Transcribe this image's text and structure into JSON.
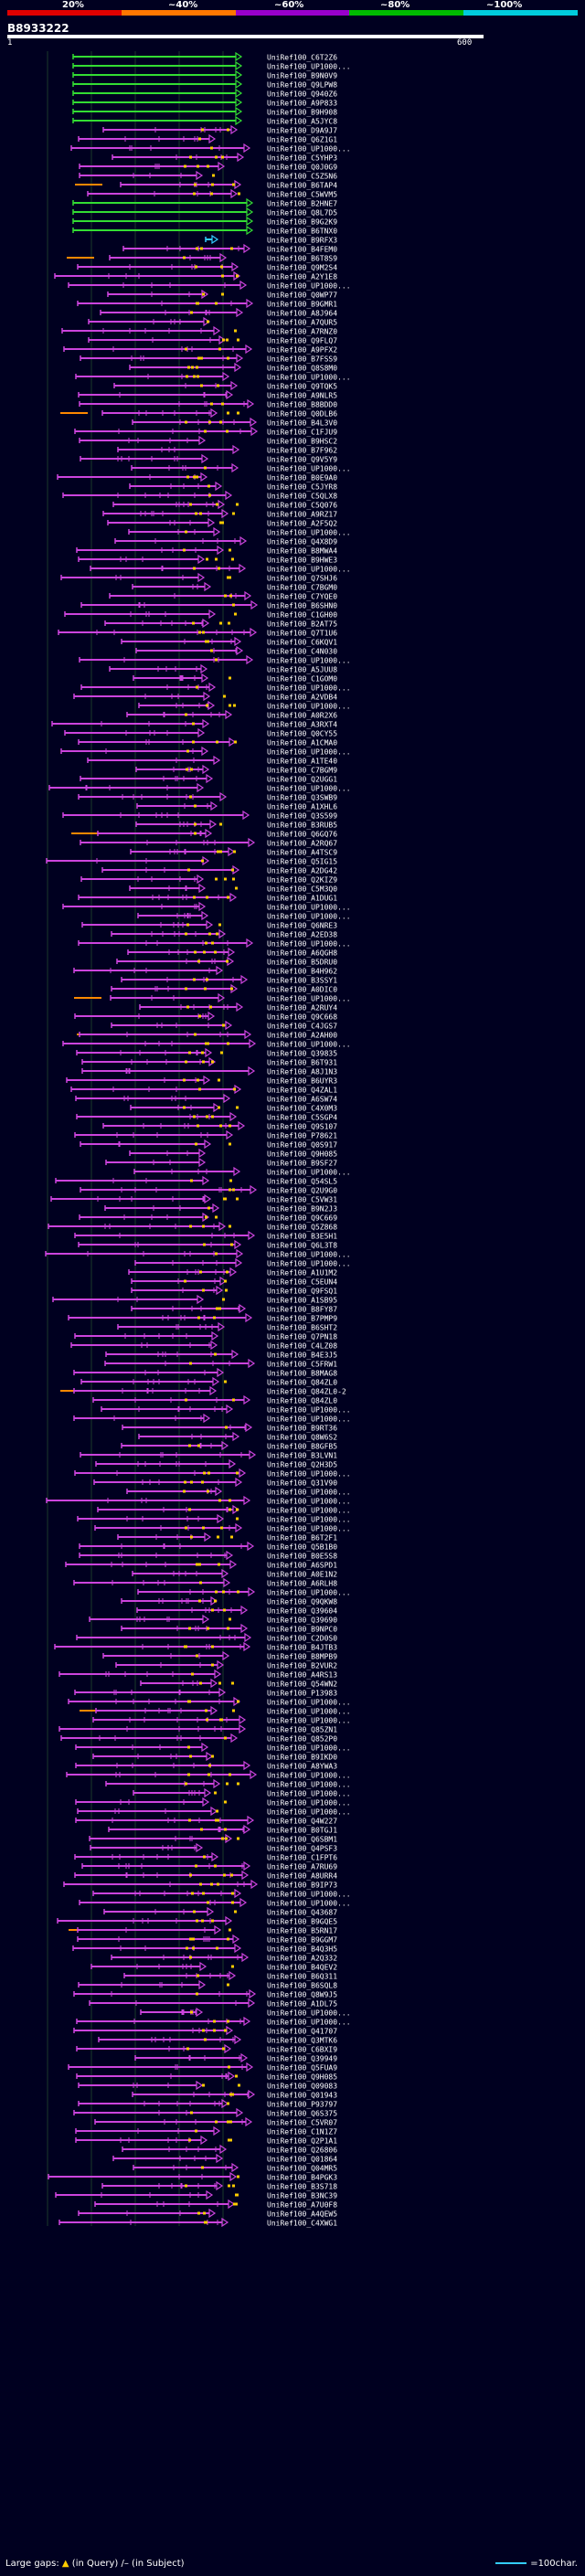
{
  "scale": {
    "labels": [
      "20%",
      "~40%",
      "~60%",
      "~80%",
      "~100%"
    ],
    "colors": [
      "#e00000",
      "#ff7700",
      "#9900cc",
      "#00bb00",
      "#00ccdd"
    ]
  },
  "query": {
    "id": "B8933222",
    "start": "1",
    "end": "600"
  },
  "colors": {
    "green": "#33dd33",
    "magenta": "#cc44dd",
    "orange": "#ff8800",
    "cyan": "#33ccff",
    "gap": "#ffcc00",
    "background": "#000020",
    "gridline": "#1a3a2a"
  },
  "hits": [
    "UniRef100_C6T2Z6",
    "UniRef100_UP1000...",
    "UniRef100_B9N0V9",
    "UniRef100_Q9LPW8",
    "UniRef100_Q940Z6",
    "UniRef100_A9P833",
    "UniRef100_B9H908",
    "UniRef100_A5JYC8",
    "UniRef100_D9A9J7",
    "UniRef100_Q6Z1G1",
    "UniRef100_UP1000...",
    "UniRef100_C5YHP3",
    "UniRef100_Q0J0G9",
    "UniRef100_C5Z5N6",
    "UniRef100_B6TAP4",
    "UniRef100_C5WVM5",
    "UniRef100_B2HNE7",
    "UniRef100_Q8L7D5",
    "UniRef100_B9G2K9",
    "UniRef100_B6TNX0",
    "UniRef100_B9RFX3",
    "UniRef100_B4FEM0",
    "UniRef100_B6T8S9",
    "UniRef100_Q9M2S4",
    "UniRef100_A2Y1E8",
    "UniRef100_UP1000...",
    "UniRef100_Q0WP77",
    "UniRef100_B9GMR1",
    "UniRef100_A8J964",
    "UniRef100_A7QUR5",
    "UniRef100_A7RNZ0",
    "UniRef100_Q9FLQ7",
    "UniRef100_A9PFX2",
    "UniRef100_B7FSS9",
    "UniRef100_Q8S8M0",
    "UniRef100_UP1000...",
    "UniRef100_Q9TQK5",
    "UniRef100_A9NLR5",
    "UniRef100_B8BDD0",
    "UniRef100_Q0DLB6",
    "UniRef100_B4L3V0",
    "UniRef100_C1FJU9",
    "UniRef100_B9HSC2",
    "UniRef100_B7F962",
    "UniRef100_Q9V5Y9",
    "UniRef100_UP1000...",
    "UniRef100_B0E9A0",
    "UniRef100_C5JYR8",
    "UniRef100_C5QLX8",
    "UniRef100_C5Q076",
    "UniRef100_A9RZ17",
    "UniRef100_A2F5Q2",
    "UniRef100_UP1000...",
    "UniRef100_Q4X8D9",
    "UniRef100_B8MWA4",
    "UniRef100_B9HWE3",
    "UniRef100_UP1000...",
    "UniRef100_Q7SHJ6",
    "UniRef100_C7BGM0",
    "UniRef100_C7YQE0",
    "UniRef100_B6SHN0",
    "UniRef100_C1GH00",
    "UniRef100_B2AT75",
    "UniRef100_Q7T1U6",
    "UniRef100_C6KQV1",
    "UniRef100_C4N030",
    "UniRef100_UP1000...",
    "UniRef100_A5JUU8",
    "UniRef100_C1GOM0",
    "UniRef100_UP1000...",
    "UniRef100_A2VDB4",
    "UniRef100_UP1000...",
    "UniRef100_A0R2X6",
    "UniRef100_A3RXT4",
    "UniRef100_Q0CY55",
    "UniRef100_A1CMA0",
    "UniRef100_UP1000...",
    "UniRef100_A1TE40",
    "UniRef100_C7BGM9",
    "UniRef100_Q2UGG1",
    "UniRef100_UP1000...",
    "UniRef100_Q3SWB9",
    "UniRef100_A1XHL6",
    "UniRef100_Q3S599",
    "UniRef100_B3RUB5",
    "UniRef100_Q6GQ76",
    "UniRef100_A2RQ67",
    "UniRef100_A4TSC9",
    "UniRef100_Q5IG15",
    "UniRef100_A2DG42",
    "UniRef100_Q2KIZ9",
    "UniRef100_C5M3Q0",
    "UniRef100_A1DUG1",
    "UniRef100_UP1000...",
    "UniRef100_UP1000...",
    "UniRef100_Q6NRE3",
    "UniRef100_A2ED38",
    "UniRef100_UP1000...",
    "UniRef100_A6QGH8",
    "UniRef100_B5DRU0",
    "UniRef100_B4H962",
    "UniRef100_B3SSY1",
    "UniRef100_A0DIC0",
    "UniRef100_UP1000...",
    "UniRef100_A2RUY4",
    "UniRef100_Q9C668",
    "UniRef100_C4JGS7",
    "UniRef100_A2AH00",
    "UniRef100_UP1000...",
    "UniRef100_Q39835",
    "UniRef100_B6T931",
    "UniRef100_A8J1N3",
    "UniRef100_B6UYR3",
    "UniRef100_Q4ZAL1",
    "UniRef100_A6SW74",
    "UniRef100_C4X0M3",
    "UniRef100_C5SGP4",
    "UniRef100_Q9S107",
    "UniRef100_P78621",
    "UniRef100_Q0S917",
    "UniRef100_Q9H085",
    "UniRef100_B9SF27",
    "UniRef100_UP1000...",
    "UniRef100_Q54SL5",
    "UniRef100_Q2U9G0",
    "UniRef100_C5VW31",
    "UniRef100_B9N2J3",
    "UniRef100_Q9C669",
    "UniRef100_Q5Z868",
    "UniRef100_B3E5H1",
    "UniRef100_Q6L3T8",
    "UniRef100_UP1000...",
    "UniRef100_UP1000...",
    "UniRef100_A1U1M2",
    "UniRef100_C5EUN4",
    "UniRef100_Q9FSQ1",
    "UniRef100_A1SB95",
    "UniRef100_B8FY87",
    "UniRef100_B7PMP9",
    "UniRef100_B6SHT2",
    "UniRef100_Q7PN18",
    "UniRef100_C4LZ08",
    "UniRef100_B4E3J5",
    "UniRef100_C5FRW1",
    "UniRef100_B8MAG8",
    "UniRef100_Q84ZL0",
    "UniRef100_Q84ZL0-2",
    "UniRef100_Q84ZL0",
    "UniRef100_UP1000...",
    "UniRef100_UP1000...",
    "UniRef100_B9RT36",
    "UniRef100_Q8W6S2",
    "UniRef100_B8GFB5",
    "UniRef100_B3LVN1",
    "UniRef100_Q2H3D5",
    "UniRef100_UP1000...",
    "UniRef100_Q31V90",
    "UniRef100_UP1000...",
    "UniRef100_UP1000...",
    "UniRef100_UP1000...",
    "UniRef100_UP1000...",
    "UniRef100_UP1000...",
    "UniRef100_B6T2F1",
    "UniRef100_Q5B1B0",
    "UniRef100_B0E5S8",
    "UniRef100_A6SPD1",
    "UniRef100_A0E1N2",
    "UniRef100_A6RLH8",
    "UniRef100_UP1000...",
    "UniRef100_Q9QKW8",
    "UniRef100_Q39604",
    "UniRef100_Q39690",
    "UniRef100_B9NPC0",
    "UniRef100_C2D0S0",
    "UniRef100_B4JTB3",
    "UniRef100_B8MPB9",
    "UniRef100_B2VUR2",
    "UniRef100_A4RS13",
    "UniRef100_Q54WN2",
    "UniRef100_P13983",
    "UniRef100_UP1000...",
    "UniRef100_UP1000...",
    "UniRef100_UP1000...",
    "UniRef100_Q85ZN1",
    "UniRef100_Q852P0",
    "UniRef100_UP1000...",
    "UniRef100_B9IKD0",
    "UniRef100_A8YWA3",
    "UniRef100_UP1000...",
    "UniRef100_UP1000...",
    "UniRef100_UP1000...",
    "UniRef100_UP1000...",
    "UniRef100_UP1000...",
    "UniRef100_Q4W227",
    "UniRef100_B0TGJ1",
    "UniRef100_Q6SBM1",
    "UniRef100_Q4PSF3",
    "UniRef100_C1FPT6",
    "UniRef100_A7RU69",
    "UniRef100_A8URR4",
    "UniRef100_B9IP73",
    "UniRef100_UP1000...",
    "UniRef100_UP1000...",
    "UniRef100_Q43687",
    "UniRef100_B9GQE5",
    "UniRef100_B5RN17",
    "UniRef100_B9GGM7",
    "UniRef100_B4Q3H5",
    "UniRef100_A2Q332",
    "UniRef100_B4QEV2",
    "UniRef100_B6Q311",
    "UniRef100_B6SQL8",
    "UniRef100_Q8W9J5",
    "UniRef100_A1DL75",
    "UniRef100_UP1000...",
    "UniRef100_UP1000...",
    "UniRef100_Q41707",
    "UniRef100_Q3MTK6",
    "UniRef100_C6BXI9",
    "UniRef100_Q39949",
    "UniRef100_Q5FUA9",
    "UniRef100_Q9H085",
    "UniRef100_Q09083",
    "UniRef100_Q01943",
    "UniRef100_P93797",
    "UniRef100_Q6S375",
    "UniRef100_C5VR07",
    "UniRef100_C1N1Z7",
    "UniRef100_Q2P1A1",
    "UniRef100_Q26806",
    "UniRef100_Q01864",
    "UniRef100_Q04MR5",
    "UniRef100_B4PGK3",
    "UniRef100_B3S718",
    "UniRef100_B3NC39",
    "UniRef100_A7U0F8",
    "UniRef100_A4QEW5",
    "UniRef100_C4XWG1"
  ],
  "footer": {
    "gaps_label": "Large gaps:",
    "in_query": "(in Query)",
    "in_subject": "(in Subject)",
    "legend_label": "=100char."
  }
}
